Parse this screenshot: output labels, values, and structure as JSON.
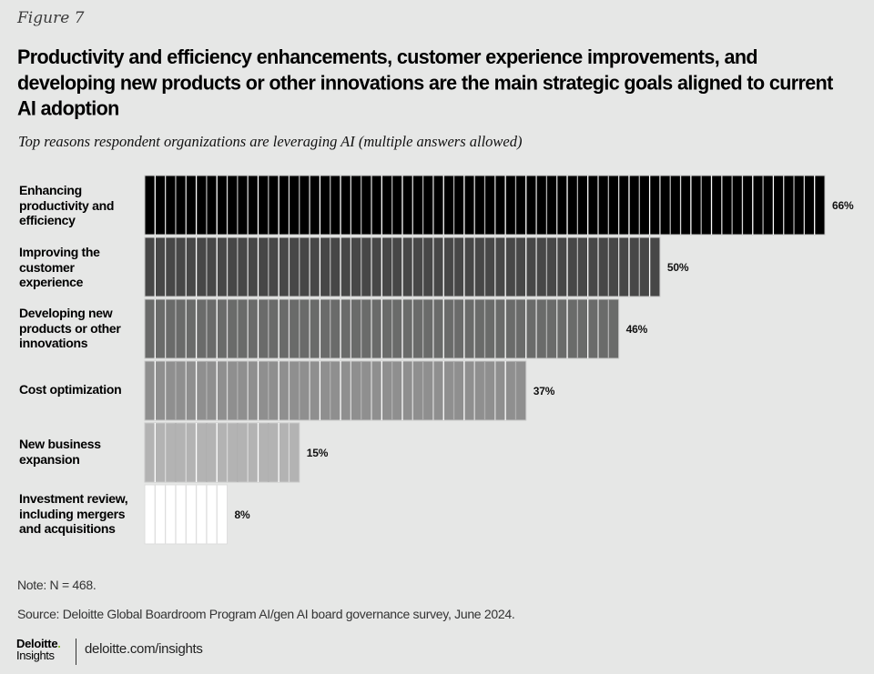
{
  "figure_label": "Figure 7",
  "title": "Productivity and efficiency enhancements, customer experience improvements, and developing new products or other innovations are the main strategic goals aligned to current AI adoption",
  "subtitle": "Top reasons respondent organizations are leveraging AI (multiple answers allowed)",
  "chart_data": {
    "type": "bar",
    "orientation": "horizontal",
    "title": "Productivity and efficiency enhancements, customer experience improvements, and developing new products or other innovations are the main strategic goals aligned to current AI adoption",
    "subtitle": "Top reasons respondent organizations are leveraging AI (multiple answers allowed)",
    "xlabel": "",
    "ylabel": "",
    "unit": "%",
    "xlim": [
      0,
      66
    ],
    "grid": false,
    "legend": "none",
    "categories": [
      "Enhancing productivity and efficiency",
      "Improving the customer experience",
      "Developing new products or other innovations",
      "Cost optimization",
      "New business expansion",
      "Investment review, including mergers and acquisitions"
    ],
    "values": [
      66,
      50,
      46,
      37,
      15,
      8
    ],
    "value_labels": [
      "66%",
      "50%",
      "46%",
      "37%",
      "15%",
      "8%"
    ],
    "bar_colors": [
      "#000000",
      "#474747",
      "#6a6b6a",
      "#8f8f8f",
      "#b3b3b3",
      "#ffffff"
    ],
    "segment_unit": 1
  },
  "footer": {
    "note": "Note: N = 468.",
    "source": "Source: Deloitte Global Boardroom Program AI/gen AI board governance survey, June 2024.",
    "logo_main": "Deloitte",
    "logo_dot": ".",
    "logo_sub": "Insights",
    "site": "deloitte.com/insights"
  }
}
